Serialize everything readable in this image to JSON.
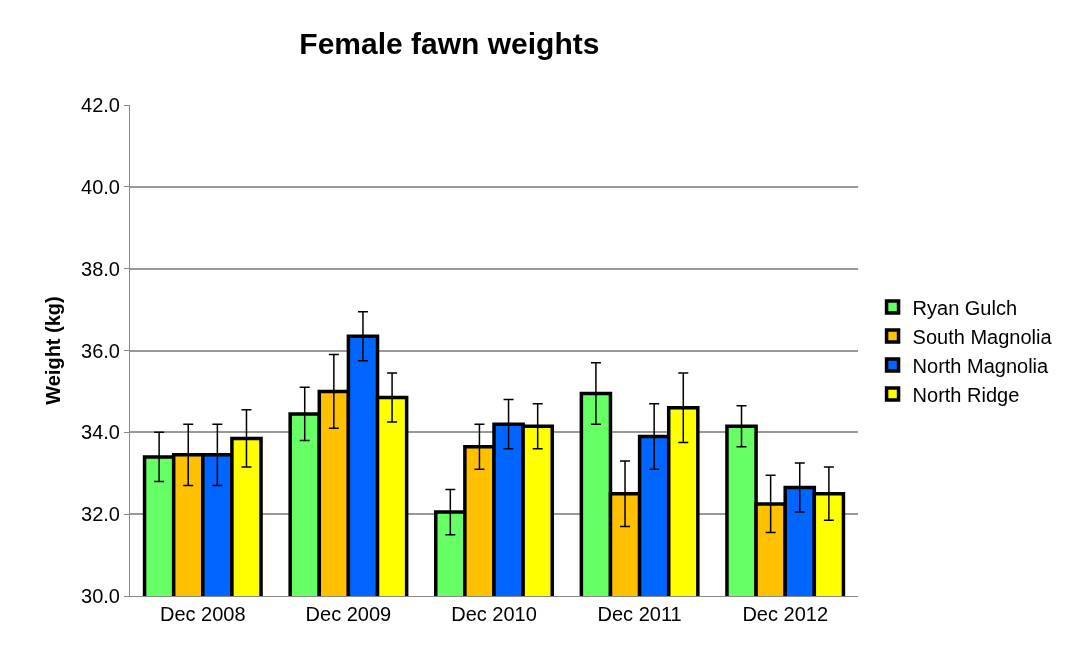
{
  "chart_data": {
    "type": "bar",
    "title": "Female fawn weights",
    "ylabel": "Weight (kg)",
    "categories": [
      "Dec 2008",
      "Dec 2009",
      "Dec 2010",
      "Dec 2011",
      "Dec 2012"
    ],
    "series": [
      {
        "name": "Ryan Gulch",
        "color": "#66ff66",
        "values": [
          33.4,
          34.45,
          32.05,
          34.95,
          34.15
        ],
        "errors": [
          0.6,
          0.65,
          0.55,
          0.75,
          0.5
        ]
      },
      {
        "name": "South Magnolia",
        "color": "#ffc000",
        "values": [
          33.45,
          35.0,
          33.65,
          32.5,
          32.25
        ],
        "errors": [
          0.75,
          0.9,
          0.55,
          0.8,
          0.7
        ]
      },
      {
        "name": "North Magnolia",
        "color": "#0066ff",
        "values": [
          33.45,
          36.35,
          34.2,
          33.9,
          32.65
        ],
        "errors": [
          0.75,
          0.6,
          0.6,
          0.8,
          0.6
        ]
      },
      {
        "name": "North Ridge",
        "color": "#ffff00",
        "values": [
          33.85,
          34.85,
          34.15,
          34.6,
          32.5
        ],
        "errors": [
          0.7,
          0.6,
          0.55,
          0.85,
          0.65
        ]
      }
    ],
    "ylim": [
      30,
      42
    ],
    "yticks": [
      {
        "value": 30,
        "label": "30.0"
      },
      {
        "value": 32,
        "label": "32.0"
      },
      {
        "value": 34,
        "label": "34.0"
      },
      {
        "value": 36,
        "label": "36.0"
      },
      {
        "value": 38,
        "label": "38.0"
      },
      {
        "value": 40,
        "label": "40.0"
      },
      {
        "value": 42,
        "label": "42.0"
      }
    ],
    "grid": "y",
    "legend": "right"
  }
}
